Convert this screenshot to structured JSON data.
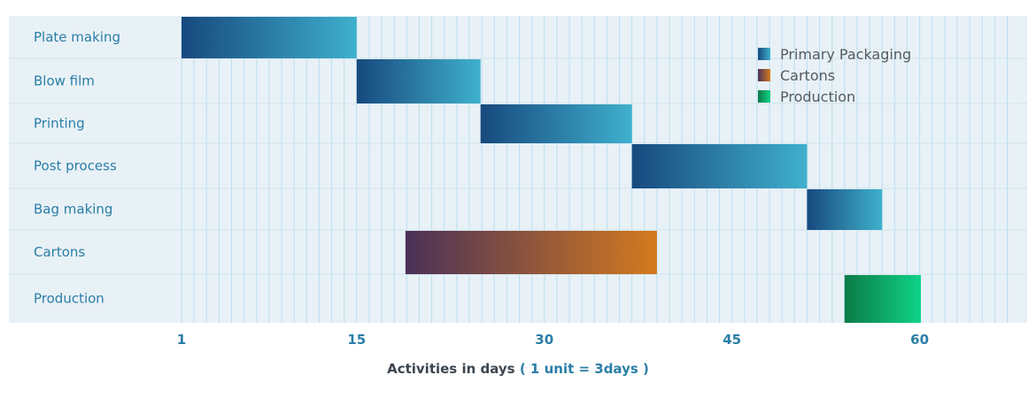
{
  "chart_data": {
    "type": "gantt",
    "tasks": [
      {
        "name": "Plate making",
        "start": 1,
        "end": 15,
        "series": "Primary Packaging"
      },
      {
        "name": "Blow film",
        "start": 15,
        "end": 24.9,
        "series": "Primary Packaging"
      },
      {
        "name": "Printing",
        "start": 24.9,
        "end": 37,
        "series": "Primary Packaging"
      },
      {
        "name": "Post process",
        "start": 37,
        "end": 51,
        "series": "Primary Packaging"
      },
      {
        "name": "Bag making",
        "start": 51,
        "end": 57,
        "series": "Primary Packaging"
      },
      {
        "name": "Cartons",
        "start": 18.9,
        "end": 39,
        "series": "Cartons"
      },
      {
        "name": "Production",
        "start": 54,
        "end": 60.1,
        "series": "Production"
      }
    ],
    "series": [
      {
        "name": "Primary Packaging",
        "colors": [
          "#17497e",
          "#3fb0cd"
        ]
      },
      {
        "name": "Cartons",
        "colors": [
          "#4a3158",
          "#d47a1f"
        ]
      },
      {
        "name": "Production",
        "colors": [
          "#0b7a46",
          "#0fd488"
        ]
      }
    ],
    "x_ticks": [
      1,
      15,
      30,
      45,
      60
    ],
    "xlim": [
      1,
      67
    ],
    "grid": true,
    "legend_position": "top-right",
    "xlabel": "Activities in days",
    "xlabel_note": "( 1 unit = 3days )",
    "background_color": "#e8f1f6",
    "grid_color": "#b9dff0",
    "label_color": "#2a7ea6"
  }
}
